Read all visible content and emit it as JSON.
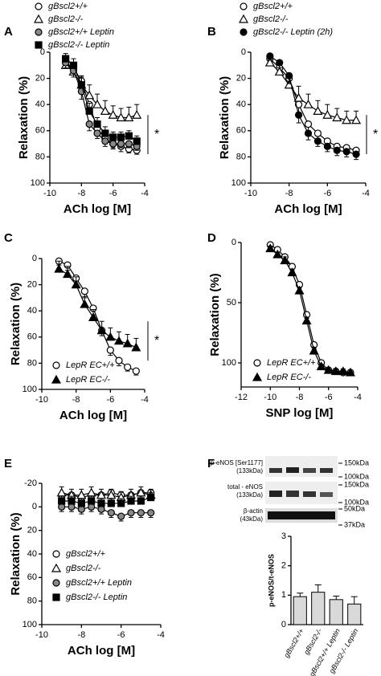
{
  "chart_data": [
    {
      "type": "line",
      "label": "A",
      "xlabel": "ACh log [M]",
      "ylabel": "Relaxation (%)",
      "annotation": "*",
      "legend": "above",
      "inverted": true,
      "xlim": [
        -10,
        -4
      ],
      "xticks": [
        -10,
        -8,
        -6,
        -4
      ],
      "ylim": [
        0,
        100
      ],
      "yticks": [
        0,
        20,
        40,
        60,
        80,
        100
      ],
      "x": [
        -9,
        -8.5,
        -8,
        -7.5,
        -7,
        -6.5,
        -6,
        -5.5,
        -5,
        -4.5
      ],
      "series": [
        {
          "name": "gBscl2+/+",
          "marker": "circle",
          "color": "#ffffff",
          "values": [
            8,
            12,
            22,
            40,
            58,
            66,
            70,
            72,
            74,
            75
          ],
          "errors": [
            4,
            5,
            5,
            6,
            5,
            4,
            4,
            4,
            3,
            3
          ]
        },
        {
          "name": "gBscl2-/-",
          "marker": "triangle",
          "color": "#ffffff",
          "values": [
            10,
            15,
            25,
            33,
            40,
            45,
            48,
            50,
            50,
            48
          ],
          "errors": [
            5,
            6,
            7,
            8,
            8,
            8,
            7,
            7,
            8,
            8
          ]
        },
        {
          "name": "gBscl2+/+ Leptin",
          "marker": "circle",
          "color": "#888888",
          "values": [
            8,
            14,
            30,
            55,
            62,
            68,
            70,
            70,
            70,
            72
          ],
          "errors": [
            4,
            5,
            6,
            5,
            4,
            4,
            3,
            3,
            3,
            3
          ]
        },
        {
          "name": "gBscl2-/- Leptin",
          "marker": "square",
          "color": "#000000",
          "values": [
            5,
            10,
            25,
            45,
            55,
            62,
            65,
            65,
            64,
            68
          ],
          "errors": [
            4,
            5,
            6,
            6,
            5,
            5,
            4,
            4,
            4,
            4
          ]
        }
      ]
    },
    {
      "type": "line",
      "label": "B",
      "xlabel": "ACh log [M]",
      "ylabel": "Relaxation (%)",
      "annotation": "*",
      "legend": "above",
      "inverted": true,
      "xlim": [
        -10,
        -4
      ],
      "xticks": [
        -10,
        -8,
        -6,
        -4
      ],
      "ylim": [
        0,
        100
      ],
      "yticks": [
        0,
        20,
        40,
        60,
        80,
        100
      ],
      "x": [
        -9,
        -8.5,
        -8,
        -7.5,
        -7,
        -6.5,
        -6,
        -5.5,
        -5,
        -4.5
      ],
      "series": [
        {
          "name": "gBscl2+/+",
          "marker": "circle",
          "color": "#ffffff",
          "values": [
            5,
            12,
            20,
            40,
            55,
            62,
            68,
            72,
            73,
            75
          ],
          "errors": [
            4,
            5,
            6,
            6,
            5,
            4,
            4,
            3,
            3,
            3
          ]
        },
        {
          "name": "gBscl2-/-",
          "marker": "triangle",
          "color": "#ffffff",
          "values": [
            8,
            15,
            25,
            35,
            40,
            45,
            48,
            50,
            52,
            52
          ],
          "errors": [
            5,
            6,
            8,
            9,
            8,
            8,
            8,
            7,
            7,
            7
          ]
        },
        {
          "name": "gBscl2-/- Leptin (2h)",
          "marker": "circle",
          "color": "#000000",
          "values": [
            3,
            8,
            18,
            48,
            62,
            68,
            72,
            75,
            76,
            78
          ],
          "errors": [
            3,
            4,
            6,
            6,
            5,
            4,
            4,
            4,
            4,
            4
          ]
        }
      ]
    },
    {
      "type": "line",
      "label": "C",
      "xlabel": "ACh log [M]",
      "ylabel": "Relaxation (%)",
      "annotation": "*",
      "legend": "lower left",
      "inverted": true,
      "xlim": [
        -10,
        -4
      ],
      "xticks": [
        -10,
        -8,
        -6,
        -4
      ],
      "ylim": [
        0,
        100
      ],
      "yticks": [
        0,
        20,
        40,
        60,
        80,
        100
      ],
      "x": [
        -9,
        -8.5,
        -8,
        -7.5,
        -7,
        -6.5,
        -6,
        -5.5,
        -5,
        -4.5
      ],
      "series": [
        {
          "name": "LepR EC+/+",
          "marker": "circle",
          "color": "#ffffff",
          "values": [
            2,
            5,
            15,
            25,
            38,
            55,
            70,
            78,
            83,
            86
          ],
          "errors": [
            3,
            4,
            5,
            5,
            5,
            4,
            4,
            4,
            3,
            3
          ]
        },
        {
          "name": "LepR EC-/-",
          "marker": "triangle",
          "color": "#000000",
          "values": [
            8,
            12,
            20,
            35,
            45,
            55,
            60,
            63,
            65,
            68
          ],
          "errors": [
            6,
            6,
            6,
            6,
            6,
            7,
            7,
            7,
            7,
            7
          ]
        }
      ]
    },
    {
      "type": "line",
      "label": "D",
      "xlabel": "SNP log [M]",
      "ylabel": "Relaxation (%)",
      "legend": "lower left",
      "inverted": true,
      "xlim": [
        -12,
        -4
      ],
      "xticks": [
        -12,
        -10,
        -8,
        -6,
        -4
      ],
      "ylim": [
        0,
        120
      ],
      "yticks": [
        0,
        50,
        100
      ],
      "x": [
        -10,
        -9.5,
        -9,
        -8.5,
        -8,
        -7.5,
        -7,
        -6.5,
        -6,
        -5.5,
        -5,
        -4.5
      ],
      "series": [
        {
          "name": "LepR EC+/+",
          "marker": "circle",
          "color": "#ffffff",
          "values": [
            2,
            6,
            12,
            20,
            35,
            60,
            85,
            100,
            106,
            107,
            108,
            108
          ],
          "errors": [
            2,
            2,
            3,
            3,
            3,
            3,
            3,
            2,
            2,
            2,
            2,
            2
          ]
        },
        {
          "name": "LepR EC-/-",
          "marker": "triangle",
          "color": "#000000",
          "values": [
            5,
            10,
            15,
            25,
            40,
            65,
            90,
            103,
            106,
            107,
            107,
            108
          ],
          "errors": [
            2,
            2,
            3,
            3,
            3,
            3,
            3,
            2,
            2,
            2,
            2,
            2
          ]
        }
      ]
    },
    {
      "type": "line",
      "label": "E",
      "xlabel": "ACh log [M]",
      "ylabel": "Relaxation (%)",
      "legend": "lower left",
      "inverted": true,
      "xlim": [
        -10,
        -4
      ],
      "xticks": [
        -10,
        -8,
        -6,
        -4
      ],
      "ylim": [
        -20,
        100
      ],
      "yticks": [
        -20,
        0,
        20,
        40,
        60,
        80,
        100
      ],
      "x": [
        -9,
        -8.5,
        -8,
        -7.5,
        -7,
        -6.5,
        -6,
        -5.5,
        -5,
        -4.5
      ],
      "series": [
        {
          "name": "gBscl2+/+",
          "marker": "circle",
          "color": "#ffffff",
          "values": [
            -10,
            -10,
            -8,
            -10,
            -10,
            -12,
            -10,
            -10,
            -12,
            -12
          ],
          "errors": [
            5,
            5,
            5,
            5,
            5,
            5,
            5,
            5,
            5,
            5
          ]
        },
        {
          "name": "gBscl2-/-",
          "marker": "triangle",
          "color": "#ffffff",
          "values": [
            -12,
            -10,
            -10,
            -12,
            -10,
            -10,
            -8,
            -10,
            -12,
            -10
          ],
          "errors": [
            5,
            5,
            5,
            5,
            5,
            5,
            5,
            5,
            5,
            5
          ]
        },
        {
          "name": "gBscl2+/+ Leptin",
          "marker": "circle",
          "color": "#888888",
          "values": [
            0,
            0,
            2,
            0,
            2,
            5,
            8,
            5,
            5,
            5
          ],
          "errors": [
            4,
            4,
            4,
            4,
            4,
            4,
            4,
            4,
            4,
            4
          ]
        },
        {
          "name": "gBscl2-/- Leptin",
          "marker": "square",
          "color": "#000000",
          "values": [
            -5,
            -5,
            -3,
            -5,
            -3,
            -3,
            -3,
            -5,
            -5,
            -8
          ],
          "errors": [
            4,
            4,
            4,
            4,
            4,
            4,
            4,
            4,
            4,
            4
          ]
        }
      ]
    },
    {
      "type": "bar",
      "label": "F",
      "ylabel": "p-eNOS/t-eNOS",
      "color": "#d9d9d9",
      "categories": [
        "gBscl2+/+",
        "gBscl2-/-",
        "gBscl2+/+ Leptin",
        "gBscl2-/- Leptin"
      ],
      "values": [
        0.95,
        1.1,
        0.85,
        0.7
      ],
      "errors": [
        0.12,
        0.25,
        0.12,
        0.25
      ],
      "ylim": [
        0,
        3
      ],
      "yticks": [
        0,
        1,
        2,
        3
      ]
    }
  ],
  "blot": {
    "labels": [
      "p-eNOS [Ser1177]",
      "(133kDa)",
      "total - eNOS",
      "(133kDa)",
      "β-actin",
      "(43kDa)"
    ],
    "markers": [
      "150kDa",
      "100kDa",
      "150kDa",
      "100kDa",
      "50kDa",
      "37kDa"
    ]
  }
}
